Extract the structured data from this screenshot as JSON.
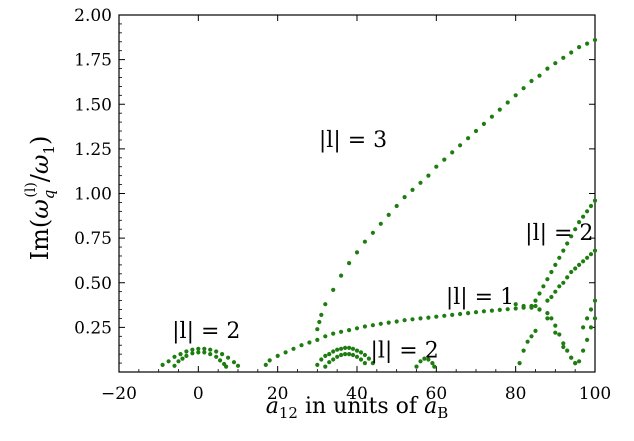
{
  "chart_data": {
    "type": "scatter",
    "xlabel": {
      "base": "a",
      "sub": "12",
      "mid": " in units of ",
      "base2": "a",
      "sub2": "B"
    },
    "ylabel": {
      "pre": "Im(",
      "omega": "ω",
      "sub": "q",
      "sup": "(l)",
      "slash": "/",
      "omega2": "ω",
      "sub2": "1",
      "post": ")"
    },
    "xlim": [
      -20,
      100
    ],
    "ylim": [
      0,
      2.0
    ],
    "xticks": [
      -20,
      0,
      20,
      40,
      60,
      80,
      100
    ],
    "xtick_labels": [
      "−20",
      "0",
      "20",
      "40",
      "60",
      "80",
      "100"
    ],
    "yticks": [
      0.25,
      0.5,
      0.75,
      1.0,
      1.25,
      1.5,
      1.75,
      2.0
    ],
    "ytick_labels": [
      "0.25",
      "0.50",
      "0.75",
      "1.00",
      "1.25",
      "1.50",
      "1.75",
      "2.00"
    ],
    "marker_color": "#1e7d10",
    "annotations": [
      {
        "text": "|l| = 3",
        "x": 39,
        "y": 1.26
      },
      {
        "text": "|l| = 2",
        "x": 91,
        "y": 0.74
      },
      {
        "text": "|l| = 1",
        "x": 71,
        "y": 0.38
      },
      {
        "text": "|l| = 2",
        "x": 2,
        "y": 0.19
      },
      {
        "text": "|l| = 2",
        "x": 52,
        "y": 0.08
      }
    ],
    "series": [
      {
        "points": [
          [
            -9,
            0.04
          ],
          [
            -7.5,
            0.06
          ],
          [
            -6,
            0.085
          ],
          [
            -4.5,
            0.1
          ],
          [
            -3,
            0.115
          ],
          [
            -1.5,
            0.125
          ],
          [
            0,
            0.13
          ],
          [
            1.5,
            0.13
          ],
          [
            3,
            0.125
          ],
          [
            4.5,
            0.115
          ],
          [
            6,
            0.1
          ],
          [
            7.5,
            0.08
          ],
          [
            9,
            0.055
          ],
          [
            10,
            0.035
          ]
        ]
      },
      {
        "points": [
          [
            -6,
            0.035
          ],
          [
            -5,
            0.06
          ],
          [
            -4,
            0.075
          ],
          [
            -3,
            0.09
          ],
          [
            -1.5,
            0.105
          ],
          [
            0,
            0.11
          ],
          [
            1.5,
            0.11
          ],
          [
            3,
            0.1
          ],
          [
            4.5,
            0.085
          ],
          [
            5.5,
            0.065
          ],
          [
            6.5,
            0.045
          ],
          [
            7,
            0.03
          ]
        ]
      },
      {
        "points": [
          [
            17,
            0.04
          ],
          [
            18,
            0.065
          ],
          [
            20,
            0.09
          ],
          [
            22,
            0.11
          ],
          [
            24,
            0.13
          ],
          [
            26,
            0.15
          ],
          [
            28,
            0.165
          ],
          [
            30,
            0.18
          ],
          [
            32,
            0.2
          ],
          [
            34,
            0.215
          ],
          [
            36,
            0.225
          ],
          [
            38,
            0.235
          ],
          [
            40,
            0.245
          ],
          [
            42,
            0.255
          ],
          [
            44,
            0.262
          ],
          [
            46,
            0.27
          ],
          [
            48,
            0.277
          ],
          [
            50,
            0.283
          ],
          [
            52,
            0.29
          ],
          [
            54,
            0.295
          ],
          [
            56,
            0.3
          ],
          [
            58,
            0.305
          ],
          [
            60,
            0.31
          ],
          [
            62,
            0.315
          ],
          [
            64,
            0.32
          ],
          [
            66,
            0.325
          ],
          [
            68,
            0.33
          ],
          [
            70,
            0.335
          ],
          [
            72,
            0.34
          ],
          [
            74,
            0.344
          ],
          [
            76,
            0.348
          ],
          [
            78,
            0.352
          ],
          [
            80,
            0.356
          ],
          [
            82,
            0.36
          ],
          [
            84,
            0.365
          ],
          [
            85,
            0.37
          ]
        ]
      },
      {
        "points": [
          [
            30,
            0.24
          ],
          [
            30.5,
            0.28
          ],
          [
            31,
            0.32
          ],
          [
            32,
            0.38
          ],
          [
            34,
            0.46
          ],
          [
            36,
            0.54
          ],
          [
            38,
            0.61
          ],
          [
            40,
            0.67
          ],
          [
            42,
            0.73
          ],
          [
            44,
            0.78
          ],
          [
            46,
            0.83
          ],
          [
            48,
            0.88
          ],
          [
            50,
            0.93
          ],
          [
            52,
            0.98
          ],
          [
            54,
            1.02
          ],
          [
            56,
            1.06
          ],
          [
            58,
            1.1
          ],
          [
            60,
            1.15
          ],
          [
            62,
            1.19
          ],
          [
            64,
            1.23
          ],
          [
            66,
            1.27
          ],
          [
            68,
            1.31
          ],
          [
            70,
            1.35
          ],
          [
            72,
            1.39
          ],
          [
            74,
            1.43
          ],
          [
            76,
            1.47
          ],
          [
            78,
            1.51
          ],
          [
            80,
            1.55
          ],
          [
            82,
            1.59
          ],
          [
            84,
            1.63
          ],
          [
            86,
            1.66
          ],
          [
            88,
            1.7
          ],
          [
            90,
            1.73
          ],
          [
            92,
            1.76
          ],
          [
            94,
            1.79
          ],
          [
            96,
            1.82
          ],
          [
            98,
            1.84
          ],
          [
            100,
            1.86
          ]
        ]
      },
      {
        "points": [
          [
            30,
            0.04
          ],
          [
            31,
            0.07
          ],
          [
            32,
            0.09
          ],
          [
            33,
            0.1
          ],
          [
            34,
            0.115
          ],
          [
            35,
            0.125
          ],
          [
            36,
            0.13
          ],
          [
            37,
            0.135
          ],
          [
            38,
            0.135
          ],
          [
            39,
            0.13
          ],
          [
            40,
            0.12
          ],
          [
            41,
            0.11
          ],
          [
            42,
            0.095
          ],
          [
            43,
            0.075
          ],
          [
            44,
            0.05
          ]
        ]
      },
      {
        "points": [
          [
            32,
            0.03
          ],
          [
            33,
            0.055
          ],
          [
            34,
            0.07
          ],
          [
            35,
            0.085
          ],
          [
            36,
            0.095
          ],
          [
            37,
            0.1
          ],
          [
            38,
            0.1
          ],
          [
            39,
            0.095
          ],
          [
            40,
            0.085
          ],
          [
            41,
            0.07
          ],
          [
            42,
            0.05
          ]
        ]
      },
      {
        "points": [
          [
            55,
            0.03
          ],
          [
            56,
            0.06
          ],
          [
            57,
            0.075
          ],
          [
            58,
            0.07
          ],
          [
            59,
            0.05
          ],
          [
            59.5,
            0.03
          ]
        ]
      },
      {
        "points": [
          [
            80,
            0.38
          ],
          [
            82,
            0.37
          ],
          [
            84,
            0.36
          ],
          [
            86,
            0.35
          ],
          [
            88,
            0.33
          ],
          [
            89,
            0.3
          ],
          [
            90,
            0.26
          ],
          [
            91,
            0.21
          ],
          [
            92,
            0.16
          ],
          [
            93,
            0.12
          ],
          [
            94,
            0.08
          ],
          [
            95,
            0.05
          ]
        ]
      },
      {
        "points": [
          [
            84,
            0.37
          ],
          [
            86,
            0.35
          ],
          [
            88,
            0.3
          ],
          [
            90,
            0.22
          ],
          [
            92,
            0.14
          ],
          [
            94,
            0.08
          ],
          [
            95,
            0.05
          ]
        ]
      },
      {
        "points": [
          [
            81,
            0.05
          ],
          [
            82,
            0.12
          ],
          [
            83,
            0.17
          ],
          [
            84,
            0.2
          ],
          [
            85,
            0.23
          ]
        ]
      },
      {
        "points": [
          [
            85,
            0.4
          ],
          [
            86,
            0.44
          ],
          [
            87,
            0.48
          ],
          [
            88,
            0.52
          ],
          [
            89,
            0.56
          ],
          [
            90,
            0.6
          ],
          [
            91,
            0.64
          ],
          [
            92,
            0.68
          ],
          [
            93,
            0.72
          ],
          [
            94,
            0.76
          ],
          [
            95,
            0.8
          ],
          [
            96,
            0.84
          ],
          [
            97,
            0.87
          ],
          [
            98,
            0.9
          ],
          [
            99,
            0.93
          ],
          [
            100,
            0.96
          ]
        ]
      },
      {
        "points": [
          [
            88,
            0.4
          ],
          [
            89,
            0.42
          ],
          [
            90,
            0.45
          ],
          [
            91,
            0.48
          ],
          [
            92,
            0.5
          ],
          [
            93,
            0.53
          ],
          [
            94,
            0.56
          ],
          [
            95,
            0.58
          ],
          [
            96,
            0.6
          ],
          [
            97,
            0.62
          ],
          [
            98,
            0.64
          ],
          [
            99,
            0.66
          ],
          [
            100,
            0.68
          ]
        ]
      },
      {
        "points": [
          [
            96,
            0.06
          ],
          [
            97,
            0.12
          ],
          [
            98,
            0.18
          ],
          [
            99,
            0.25
          ],
          [
            100,
            0.3
          ]
        ]
      },
      {
        "points": [
          [
            97,
            0.25
          ],
          [
            98,
            0.3
          ],
          [
            99,
            0.35
          ],
          [
            100,
            0.4
          ]
        ]
      }
    ]
  }
}
